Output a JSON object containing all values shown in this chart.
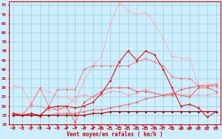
{
  "xlabel": "Vent moyen/en rafales ( km/h )",
  "background_color": "#cceeff",
  "grid_color": "#99cccc",
  "x_values": [
    0,
    1,
    2,
    3,
    4,
    5,
    6,
    7,
    8,
    9,
    10,
    11,
    12,
    13,
    14,
    15,
    16,
    17,
    18,
    19,
    20,
    21,
    22,
    23
  ],
  "ylim": [
    10,
    77
  ],
  "yticks": [
    10,
    15,
    20,
    25,
    30,
    35,
    40,
    45,
    50,
    55,
    60,
    65,
    70,
    75
  ],
  "series": [
    {
      "color": "#ffaaaa",
      "alpha": 0.85,
      "linewidth": 0.8,
      "markersize": 2,
      "values": [
        31,
        30,
        21,
        29,
        28,
        25,
        25,
        22,
        34,
        42,
        47,
        65,
        76,
        72,
        70,
        71,
        65,
        57,
        47,
        46,
        46,
        31,
        32,
        32
      ]
    },
    {
      "color": "#ff6666",
      "alpha": 0.7,
      "linewidth": 0.8,
      "markersize": 2,
      "values": [
        15,
        15,
        21,
        30,
        20,
        29,
        29,
        29,
        40,
        42,
        42,
        42,
        42,
        42,
        44,
        46,
        44,
        42,
        36,
        35,
        35,
        31,
        31,
        32
      ]
    },
    {
      "color": "#ff4444",
      "alpha": 0.75,
      "linewidth": 0.8,
      "markersize": 2,
      "values": [
        16,
        15,
        16,
        14,
        20,
        18,
        20,
        11,
        22,
        25,
        28,
        30,
        30,
        30,
        28,
        28,
        27,
        26,
        27,
        26,
        25,
        30,
        30,
        28
      ]
    },
    {
      "color": "#ff8888",
      "alpha": 0.65,
      "linewidth": 0.8,
      "markersize": 2,
      "values": [
        16,
        16,
        20,
        20,
        18,
        18,
        19,
        25,
        26,
        25,
        26,
        28,
        28,
        26,
        27,
        29,
        27,
        26,
        26,
        26,
        26,
        26,
        26,
        27
      ]
    },
    {
      "color": "#ff5555",
      "alpha": 0.8,
      "linewidth": 0.8,
      "markersize": 2,
      "values": [
        15,
        15,
        15,
        15,
        15,
        16,
        16,
        16,
        17,
        18,
        18,
        19,
        20,
        21,
        22,
        24,
        25,
        26,
        26,
        29,
        30,
        31,
        31,
        31
      ]
    },
    {
      "color": "#dd2222",
      "alpha": 1.0,
      "linewidth": 0.9,
      "markersize": 2,
      "values": [
        16,
        15,
        16,
        15,
        19,
        20,
        20,
        19,
        20,
        22,
        27,
        34,
        44,
        50,
        45,
        50,
        48,
        40,
        30,
        20,
        21,
        19,
        14,
        17
      ]
    },
    {
      "color": "#aa0000",
      "alpha": 1.0,
      "linewidth": 0.9,
      "markersize": 2,
      "values": [
        15,
        15,
        15,
        15,
        15,
        15,
        15,
        15,
        15,
        16,
        16,
        17,
        17,
        17,
        17,
        17,
        17,
        17,
        17,
        17,
        17,
        17,
        17,
        17
      ]
    }
  ],
  "arrow_angles": [
    45,
    45,
    45,
    45,
    50,
    50,
    55,
    55,
    60,
    70,
    80,
    85,
    90,
    90,
    90,
    90,
    85,
    80,
    75,
    65,
    55,
    50,
    45,
    45
  ],
  "text_color": "#cc0000",
  "tick_label_color": "#cc0000"
}
